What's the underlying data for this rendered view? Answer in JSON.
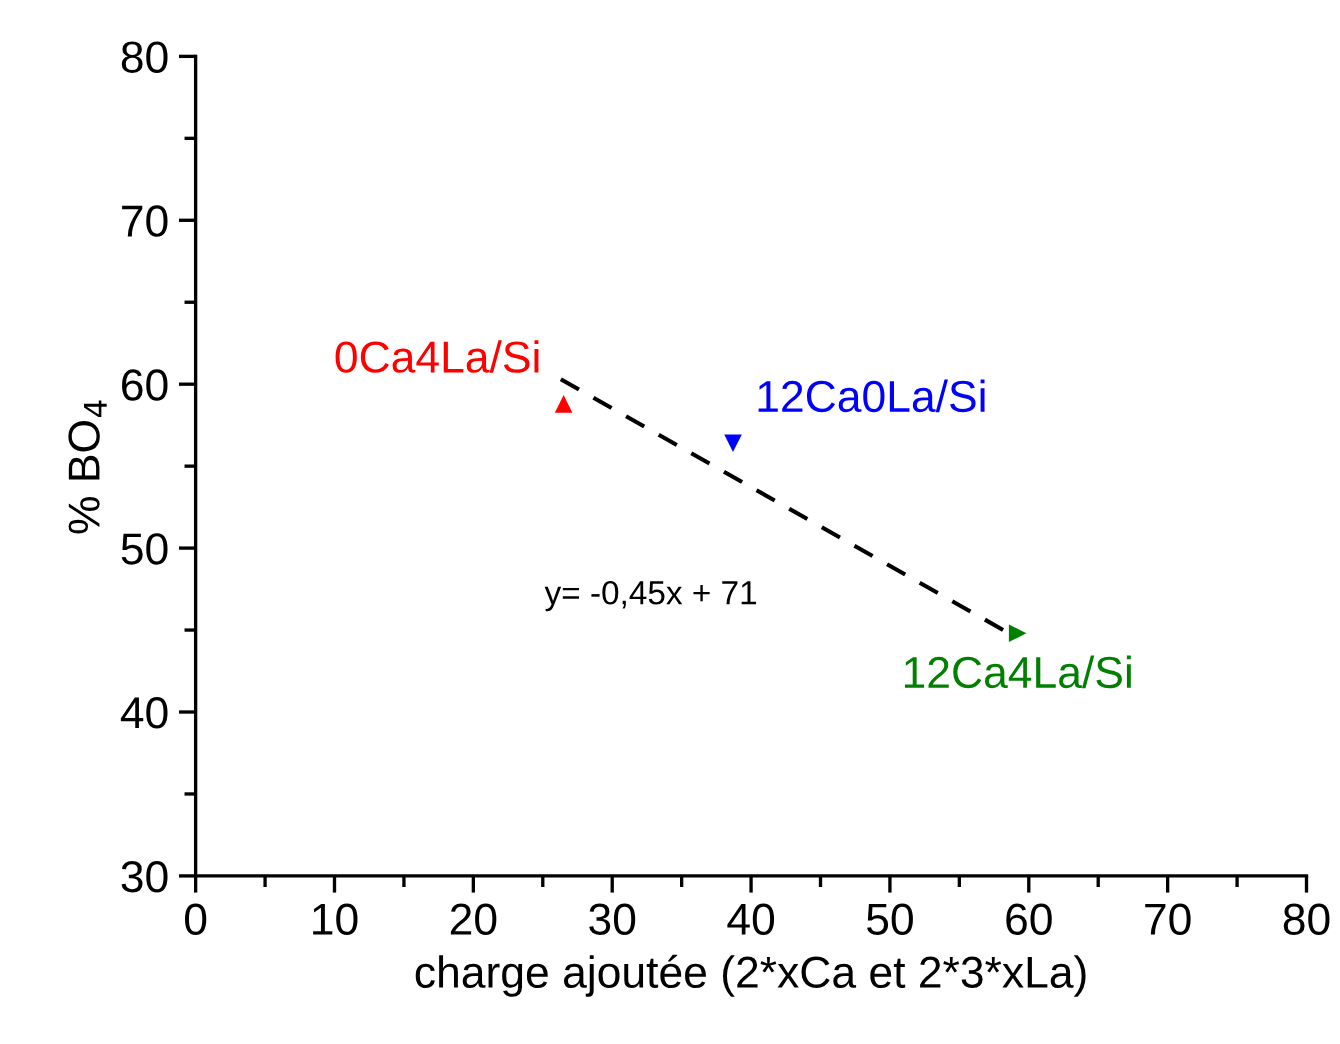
{
  "chart_data": {
    "type": "scatter",
    "xlabel": "charge ajoutée (2*xCa et 2*3*xLa)",
    "ylabel": "% BO$_{4}$",
    "xlim": [
      0,
      80
    ],
    "ylim": [
      30,
      80
    ],
    "xticks": [
      0,
      10,
      20,
      30,
      40,
      50,
      60,
      70,
      80
    ],
    "yticks": [
      30,
      40,
      50,
      60,
      70,
      80
    ],
    "grid": false,
    "legend": false,
    "series": [
      {
        "name": "0Ca4La/Si",
        "color": "#ff0000",
        "marker": "triangle",
        "x": [
          26.5
        ],
        "values": [
          58.8
        ]
      },
      {
        "name": "12Ca0La/Si",
        "color": "#0000ff",
        "marker": "triangle_down",
        "x": [
          38.7
        ],
        "values": [
          56.4
        ]
      },
      {
        "name": "12Ca4La/Si",
        "color": "#008000",
        "marker": "triangle_right",
        "x": [
          59.2
        ],
        "values": [
          44.8
        ]
      },
      {
        "type": "line",
        "color": "#000000",
        "line_style": "dashed",
        "marker": "none",
        "x": [
          26.3,
          59.2
        ],
        "values": [
          60.3,
          44.5
        ]
      }
    ],
    "annotations": [
      "y= -0,45x + 71"
    ]
  }
}
